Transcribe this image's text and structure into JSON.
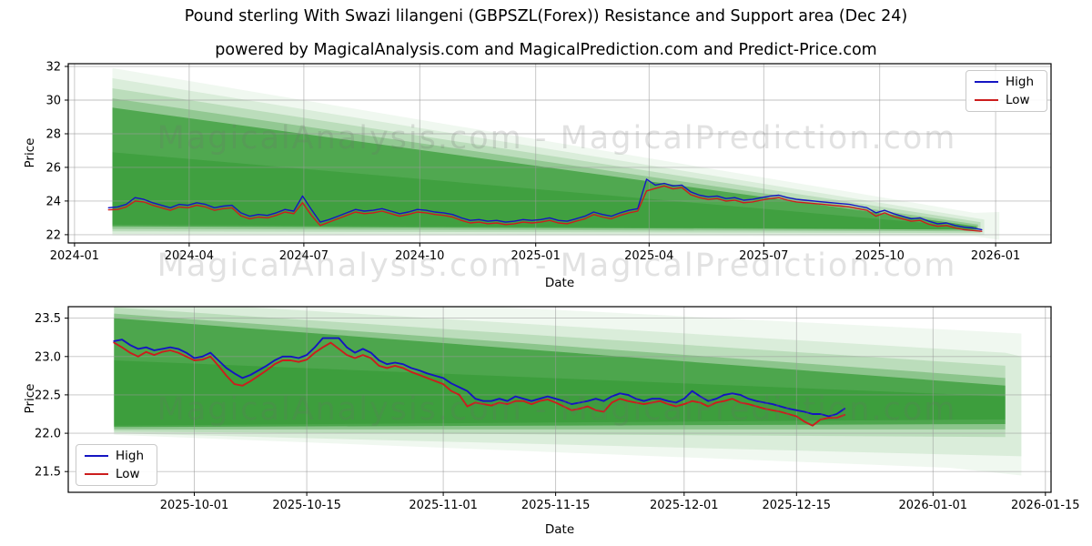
{
  "title": "Pound sterling With Swazi lilangeni (GBPSZL(Forex)) Resistance and Support area (Dec 24)",
  "subtitle": "powered by MagicalAnalysis.com and MagicalPrediction.com and Predict-Price.com",
  "watermark": {
    "text": "MagicalAnalysis.com - MagicalPrediction.com"
  },
  "colors": {
    "high": "#1515c2",
    "low": "#cc1d1d",
    "band": "#008000",
    "grid": "#9a9a9a"
  },
  "chart_data": [
    {
      "id": "top",
      "type": "line",
      "title": "",
      "xlabel": "Date",
      "ylabel": "Price",
      "x_unit": "days since 2024-01-01",
      "xlim": [
        -5,
        775
      ],
      "ylim": [
        21.51,
        32.16
      ],
      "grid": true,
      "legend_position": "upper right",
      "xticks": [
        {
          "pos": 0,
          "label": "2024-01"
        },
        {
          "pos": 91,
          "label": "2024-04"
        },
        {
          "pos": 182,
          "label": "2024-07"
        },
        {
          "pos": 274,
          "label": "2024-10"
        },
        {
          "pos": 366,
          "label": "2025-01"
        },
        {
          "pos": 456,
          "label": "2025-04"
        },
        {
          "pos": 547,
          "label": "2025-07"
        },
        {
          "pos": 639,
          "label": "2025-10"
        },
        {
          "pos": 731,
          "label": "2026-01"
        }
      ],
      "yticks": [
        {
          "pos": 22,
          "label": "22"
        },
        {
          "pos": 24,
          "label": "24"
        },
        {
          "pos": 26,
          "label": "26"
        },
        {
          "pos": 28,
          "label": "28"
        },
        {
          "pos": 30,
          "label": "30"
        },
        {
          "pos": 32,
          "label": "32"
        }
      ],
      "legend": {
        "entries": [
          {
            "label": "High",
            "color": "#1515c2"
          },
          {
            "label": "Low",
            "color": "#cc1d1d"
          }
        ]
      },
      "series": [
        {
          "name": "High",
          "color": "#1515c2",
          "width": 1.4,
          "x0": 27,
          "dx": 7,
          "values": [
            23.6,
            23.65,
            23.8,
            24.2,
            24.1,
            23.9,
            23.75,
            23.6,
            23.8,
            23.75,
            23.9,
            23.8,
            23.6,
            23.7,
            23.75,
            23.3,
            23.1,
            23.2,
            23.15,
            23.3,
            23.5,
            23.4,
            24.3,
            23.5,
            22.75,
            22.9,
            23.1,
            23.3,
            23.5,
            23.4,
            23.45,
            23.55,
            23.4,
            23.25,
            23.35,
            23.5,
            23.45,
            23.35,
            23.3,
            23.2,
            23.0,
            22.85,
            22.9,
            22.8,
            22.85,
            22.75,
            22.8,
            22.9,
            22.85,
            22.9,
            23.0,
            22.85,
            22.8,
            22.95,
            23.1,
            23.35,
            23.2,
            23.1,
            23.3,
            23.45,
            23.55,
            25.3,
            24.95,
            25.05,
            24.9,
            24.95,
            24.55,
            24.35,
            24.25,
            24.3,
            24.15,
            24.2,
            24.05,
            24.1,
            24.2,
            24.3,
            24.35,
            24.2,
            24.1,
            24.05,
            24.0,
            23.95,
            23.9,
            23.85,
            23.8,
            23.7,
            23.6,
            23.3,
            23.45,
            23.25,
            23.1,
            22.95,
            23.0,
            22.8,
            22.65,
            22.7,
            22.55,
            22.45,
            22.4,
            22.3
          ]
        },
        {
          "name": "Low",
          "color": "#cc1d1d",
          "width": 1.4,
          "x0": 27,
          "dx": 7,
          "values": [
            23.48,
            23.5,
            23.65,
            24.0,
            23.95,
            23.75,
            23.6,
            23.45,
            23.65,
            23.6,
            23.75,
            23.65,
            23.45,
            23.55,
            23.6,
            23.12,
            22.95,
            23.05,
            23.0,
            23.15,
            23.35,
            23.25,
            23.9,
            23.15,
            22.55,
            22.75,
            22.95,
            23.15,
            23.35,
            23.25,
            23.3,
            23.4,
            23.25,
            23.1,
            23.2,
            23.35,
            23.3,
            23.2,
            23.15,
            23.05,
            22.85,
            22.7,
            22.75,
            22.65,
            22.7,
            22.6,
            22.65,
            22.75,
            22.7,
            22.75,
            22.85,
            22.7,
            22.65,
            22.8,
            22.95,
            23.2,
            23.05,
            22.95,
            23.15,
            23.3,
            23.4,
            24.6,
            24.75,
            24.9,
            24.72,
            24.8,
            24.38,
            24.2,
            24.1,
            24.15,
            24.0,
            24.05,
            23.9,
            23.95,
            24.05,
            24.15,
            24.2,
            24.05,
            23.95,
            23.9,
            23.85,
            23.8,
            23.75,
            23.7,
            23.65,
            23.55,
            23.45,
            23.1,
            23.3,
            23.08,
            22.95,
            22.8,
            22.85,
            22.62,
            22.5,
            22.55,
            22.4,
            22.3,
            22.25,
            22.2
          ]
        }
      ],
      "bands": [
        {
          "opacity": 0.06,
          "points": [
            [
              30,
              31.9
            ],
            [
              714,
              23.3
            ],
            [
              734,
              23.35
            ],
            [
              734,
              21.7
            ],
            [
              714,
              21.9
            ],
            [
              30,
              21.95
            ]
          ]
        },
        {
          "opacity": 0.09,
          "points": [
            [
              30,
              31.3
            ],
            [
              722,
              22.9
            ],
            [
              722,
              22.0
            ],
            [
              30,
              22.05
            ]
          ]
        },
        {
          "opacity": 0.14,
          "points": [
            [
              30,
              30.7
            ],
            [
              719,
              22.75
            ],
            [
              719,
              22.1
            ],
            [
              30,
              22.2
            ]
          ]
        },
        {
          "opacity": 0.22,
          "points": [
            [
              30,
              30.1
            ],
            [
              717,
              22.6
            ],
            [
              717,
              22.2
            ],
            [
              30,
              22.35
            ]
          ]
        },
        {
          "opacity": 0.45,
          "points": [
            [
              30,
              29.55
            ],
            [
              716,
              22.5
            ],
            [
              716,
              22.3
            ],
            [
              30,
              22.5
            ]
          ]
        },
        {
          "opacity": 0.2,
          "points": [
            [
              30,
              26.9
            ],
            [
              714,
              22.45
            ],
            [
              714,
              22.32
            ],
            [
              30,
              22.6
            ]
          ]
        }
      ]
    },
    {
      "id": "bottom",
      "type": "line",
      "title": "",
      "xlabel": "Date",
      "ylabel": "Price",
      "x_unit": "days since 2025-09-15",
      "xlim": [
        0.3,
        122.7
      ],
      "ylim": [
        21.23,
        23.65
      ],
      "grid": true,
      "legend_position": "lower left",
      "xticks": [
        {
          "pos": 16,
          "label": "2025-10-01"
        },
        {
          "pos": 30,
          "label": "2025-10-15"
        },
        {
          "pos": 47,
          "label": "2025-11-01"
        },
        {
          "pos": 61,
          "label": "2025-11-15"
        },
        {
          "pos": 77,
          "label": "2025-12-01"
        },
        {
          "pos": 91,
          "label": "2025-12-15"
        },
        {
          "pos": 108,
          "label": "2026-01-01"
        },
        {
          "pos": 122,
          "label": "2026-01-15"
        }
      ],
      "yticks": [
        {
          "pos": 21.5,
          "label": "21.5"
        },
        {
          "pos": 22.0,
          "label": "22.0"
        },
        {
          "pos": 22.5,
          "label": "22.5"
        },
        {
          "pos": 23.0,
          "label": "23.0"
        },
        {
          "pos": 23.5,
          "label": "23.5"
        }
      ],
      "legend": {
        "entries": [
          {
            "label": "High",
            "color": "#1515c2"
          },
          {
            "label": "Low",
            "color": "#cc1d1d"
          }
        ]
      },
      "series": [
        {
          "name": "High",
          "color": "#1515c2",
          "width": 1.9,
          "x0": 6,
          "dx": 1,
          "values": [
            23.2,
            23.22,
            23.15,
            23.1,
            23.12,
            23.08,
            23.1,
            23.12,
            23.1,
            23.05,
            22.98,
            23.0,
            23.05,
            22.95,
            22.85,
            22.78,
            22.72,
            22.76,
            22.82,
            22.88,
            22.95,
            23.0,
            23.0,
            22.98,
            23.02,
            23.12,
            23.24,
            23.24,
            23.24,
            23.12,
            23.05,
            23.1,
            23.05,
            22.95,
            22.9,
            22.92,
            22.9,
            22.85,
            22.82,
            22.78,
            22.75,
            22.72,
            22.65,
            22.6,
            22.55,
            22.45,
            22.42,
            22.42,
            22.45,
            22.42,
            22.48,
            22.45,
            22.42,
            22.45,
            22.48,
            22.45,
            22.42,
            22.38,
            22.4,
            22.42,
            22.45,
            22.42,
            22.48,
            22.52,
            22.5,
            22.45,
            22.42,
            22.45,
            22.45,
            22.42,
            22.4,
            22.45,
            22.55,
            22.48,
            22.42,
            22.45,
            22.5,
            22.52,
            22.5,
            22.45,
            22.42,
            22.4,
            22.38,
            22.35,
            22.32,
            22.3,
            22.28,
            22.25,
            22.25,
            22.22,
            22.25,
            22.32
          ]
        },
        {
          "name": "Low",
          "color": "#cc1d1d",
          "width": 1.9,
          "x0": 6,
          "dx": 1,
          "values": [
            23.18,
            23.12,
            23.05,
            23.0,
            23.06,
            23.02,
            23.06,
            23.08,
            23.05,
            23.0,
            22.95,
            22.96,
            23.0,
            22.88,
            22.75,
            22.64,
            22.62,
            22.68,
            22.75,
            22.82,
            22.9,
            22.95,
            22.95,
            22.93,
            22.96,
            23.05,
            23.12,
            23.18,
            23.1,
            23.02,
            22.98,
            23.02,
            22.98,
            22.88,
            22.85,
            22.88,
            22.85,
            22.8,
            22.76,
            22.72,
            22.68,
            22.64,
            22.55,
            22.5,
            22.35,
            22.4,
            22.38,
            22.36,
            22.4,
            22.38,
            22.42,
            22.42,
            22.38,
            22.42,
            22.44,
            22.4,
            22.35,
            22.3,
            22.32,
            22.35,
            22.3,
            22.28,
            22.4,
            22.45,
            22.42,
            22.4,
            22.38,
            22.4,
            22.42,
            22.38,
            22.35,
            22.38,
            22.42,
            22.4,
            22.35,
            22.4,
            22.42,
            22.45,
            22.4,
            22.38,
            22.35,
            22.32,
            22.3,
            22.28,
            22.25,
            22.22,
            22.15,
            22.1,
            22.18,
            22.2,
            22.2,
            22.24
          ]
        }
      ],
      "bands": [
        {
          "opacity": 0.06,
          "points": [
            [
              6,
              23.9
            ],
            [
              110,
              23.35
            ],
            [
              119,
              23.3
            ],
            [
              119,
              21.45
            ],
            [
              110,
              21.55
            ],
            [
              6,
              21.98
            ]
          ]
        },
        {
          "opacity": 0.09,
          "points": [
            [
              6,
              23.75
            ],
            [
              117,
              23.05
            ],
            [
              119,
              23.0
            ],
            [
              119,
              21.7
            ],
            [
              6,
              22.0
            ]
          ]
        },
        {
          "opacity": 0.14,
          "points": [
            [
              6,
              23.64
            ],
            [
              117,
              22.88
            ],
            [
              117,
              21.95
            ],
            [
              6,
              22.02
            ]
          ]
        },
        {
          "opacity": 0.25,
          "points": [
            [
              6,
              23.56
            ],
            [
              117,
              22.72
            ],
            [
              117,
              22.05
            ],
            [
              6,
              22.05
            ]
          ]
        },
        {
          "opacity": 0.45,
          "points": [
            [
              6,
              23.5
            ],
            [
              117,
              22.62
            ],
            [
              117,
              22.12
            ],
            [
              6,
              22.08
            ]
          ]
        },
        {
          "opacity": 0.2,
          "points": [
            [
              6,
              22.95
            ],
            [
              117,
              22.48
            ],
            [
              117,
              22.18
            ],
            [
              6,
              22.1
            ]
          ]
        }
      ]
    }
  ]
}
